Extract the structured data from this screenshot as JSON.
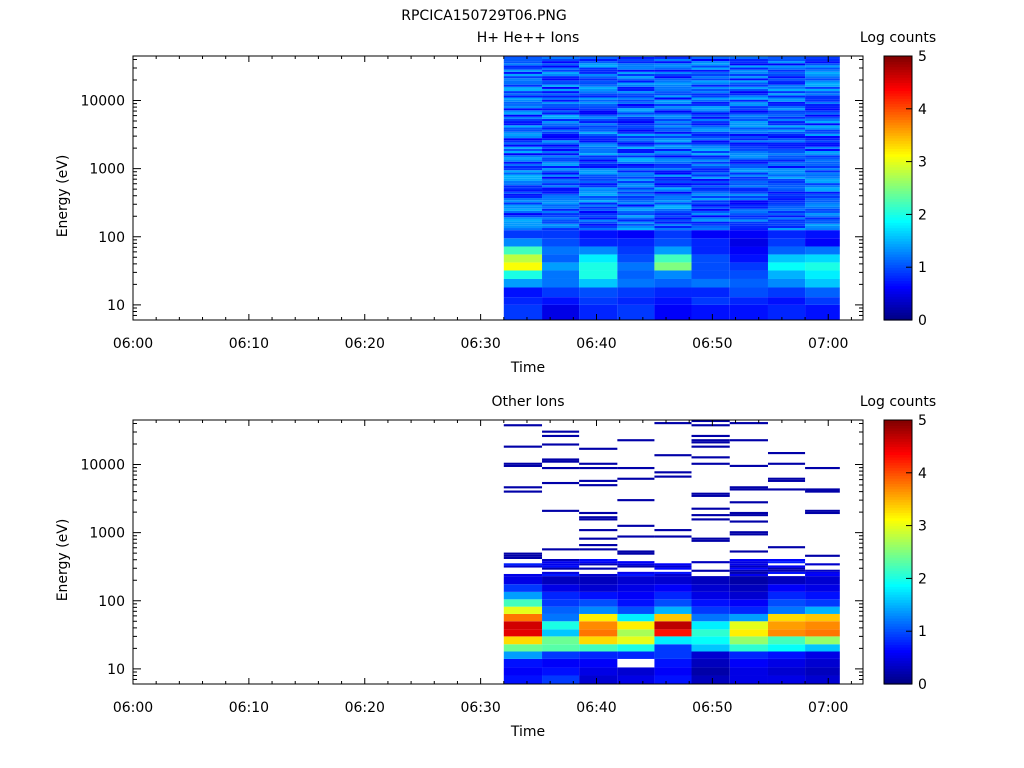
{
  "title": "RPCICA150729T06.PNG",
  "time_ticks": [
    "06:00",
    "06:10",
    "06:20",
    "06:30",
    "06:40",
    "06:50",
    "07:00"
  ],
  "time_tick_minutes": [
    0,
    10,
    20,
    30,
    40,
    50,
    60
  ],
  "energy_ticks": [
    "10",
    "100",
    "1000",
    "10000"
  ],
  "energy_tick_values": [
    10,
    100,
    1000,
    10000
  ],
  "colorbar_ticks": [
    "0",
    "1",
    "2",
    "3",
    "4",
    "5"
  ],
  "chart_data": [
    {
      "type": "heatmap",
      "title": "H+ He++ Ions",
      "xlabel": "Time",
      "ylabel": "Energy (eV)",
      "colorbar_label": "Log counts",
      "xlim_minutes": [
        0,
        63
      ],
      "ylim": [
        6,
        45000
      ],
      "yscale": "log",
      "zlim": [
        0,
        5
      ],
      "colormap": "jet",
      "data_start_minute": 32,
      "time_columns": [
        "06:32",
        "06:35",
        "06:38",
        "06:42",
        "06:45",
        "06:48",
        "06:51",
        "06:55",
        "06:58"
      ],
      "column_edges_minutes": [
        32,
        35.3,
        38.5,
        41.8,
        45,
        48.2,
        51.5,
        54.8,
        58,
        61
      ],
      "low_energy_bins": [
        {
          "energy_range": [
            6,
            10
          ],
          "values": [
            0.9,
            0.5,
            0.8,
            0.9,
            0.6,
            0.7,
            0.7,
            0.8,
            0.7
          ]
        },
        {
          "energy_range": [
            10,
            13
          ],
          "values": [
            0.8,
            0.7,
            0.9,
            0.8,
            0.7,
            0.9,
            0.8,
            0.7,
            0.9
          ]
        },
        {
          "energy_range": [
            13,
            18
          ],
          "values": [
            0.7,
            0.9,
            1.0,
            0.9,
            0.8,
            0.8,
            1.0,
            0.9,
            1.1
          ]
        },
        {
          "energy_range": [
            18,
            24
          ],
          "values": [
            1.4,
            1.2,
            1.6,
            1.2,
            1.1,
            1.2,
            1.1,
            1.3,
            1.6
          ]
        },
        {
          "energy_range": [
            24,
            32
          ],
          "values": [
            2.0,
            1.2,
            2.0,
            1.1,
            1.3,
            1.0,
            1.0,
            1.5,
            1.8
          ]
        },
        {
          "energy_range": [
            32,
            42
          ],
          "values": [
            3.1,
            1.4,
            2.0,
            1.2,
            2.5,
            1.0,
            0.9,
            1.9,
            2.0
          ]
        },
        {
          "energy_range": [
            42,
            55
          ],
          "values": [
            2.8,
            1.1,
            1.8,
            1.0,
            2.2,
            1.0,
            0.7,
            1.6,
            1.7
          ]
        },
        {
          "energy_range": [
            55,
            72
          ],
          "values": [
            2.2,
            1.2,
            1.3,
            0.9,
            1.4,
            0.8,
            0.6,
            1.1,
            1.2
          ]
        },
        {
          "energy_range": [
            72,
            95
          ],
          "values": [
            1.3,
            1.0,
            0.8,
            0.8,
            1.0,
            0.8,
            0.5,
            0.9,
            0.6
          ]
        },
        {
          "energy_range": [
            95,
            125
          ],
          "values": [
            0.9,
            0.9,
            0.7,
            0.6,
            0.9,
            0.6,
            0.6,
            0.8,
            0.7
          ]
        }
      ],
      "high_energy_background_range": [
        0.6,
        1.5
      ]
    },
    {
      "type": "heatmap",
      "title": "Other Ions",
      "xlabel": "Time",
      "ylabel": "Energy (eV)",
      "colorbar_label": "Log counts",
      "xlim_minutes": [
        0,
        63
      ],
      "ylim": [
        6,
        45000
      ],
      "yscale": "log",
      "zlim": [
        0,
        5
      ],
      "colormap": "jet",
      "data_start_minute": 32,
      "time_columns": [
        "06:32",
        "06:35",
        "06:38",
        "06:42",
        "06:45",
        "06:48",
        "06:51",
        "06:55",
        "06:58"
      ],
      "column_edges_minutes": [
        32,
        35.3,
        38.5,
        41.8,
        45,
        48.2,
        51.5,
        54.8,
        58,
        61
      ],
      "low_energy_bins": [
        {
          "energy_range": [
            6,
            8
          ],
          "values": [
            0.7,
            0.9,
            0.4,
            0.5,
            0.7,
            0.3,
            0.5,
            0.5,
            0.4
          ]
        },
        {
          "energy_range": [
            8,
            10.5
          ],
          "values": [
            0.6,
            0.7,
            0.5,
            0.4,
            0.6,
            0.2,
            0.5,
            0.4,
            0.3
          ]
        },
        {
          "energy_range": [
            10.5,
            14
          ],
          "values": [
            0.7,
            0.6,
            0.6,
            null,
            0.7,
            0.3,
            0.6,
            0.5,
            0.4
          ]
        },
        {
          "energy_range": [
            14,
            18
          ],
          "values": [
            1.4,
            0.9,
            0.8,
            0.8,
            0.9,
            0.4,
            0.8,
            0.7,
            0.5
          ]
        },
        {
          "energy_range": [
            18,
            23
          ],
          "values": [
            2.4,
            2.3,
            2.2,
            2.0,
            0.9,
            1.6,
            2.1,
            1.9,
            1.6
          ]
        },
        {
          "energy_range": [
            23,
            30
          ],
          "values": [
            3.3,
            2.4,
            3.3,
            3.0,
            1.8,
            1.9,
            2.6,
            2.2,
            2.6
          ]
        },
        {
          "energy_range": [
            30,
            38
          ],
          "values": [
            4.5,
            1.6,
            3.8,
            2.7,
            4.3,
            2.1,
            3.2,
            3.7,
            3.8
          ]
        },
        {
          "energy_range": [
            38,
            50
          ],
          "values": [
            4.6,
            2.0,
            3.7,
            3.2,
            4.7,
            1.8,
            3.0,
            3.6,
            3.7
          ]
        },
        {
          "energy_range": [
            50,
            64
          ],
          "values": [
            3.8,
            1.2,
            3.2,
            1.8,
            3.4,
            1.2,
            1.4,
            3.3,
            3.4
          ]
        },
        {
          "energy_range": [
            64,
            82
          ],
          "values": [
            3.0,
            1.1,
            1.3,
            1.0,
            1.5,
            0.9,
            0.8,
            1.2,
            1.5
          ]
        },
        {
          "energy_range": [
            82,
            105
          ],
          "values": [
            2.2,
            0.9,
            1.0,
            0.7,
            1.0,
            0.7,
            0.6,
            1.0,
            0.9
          ]
        },
        {
          "energy_range": [
            105,
            135
          ],
          "values": [
            1.4,
            0.8,
            0.7,
            0.6,
            0.8,
            0.5,
            0.4,
            0.8,
            0.7
          ]
        },
        {
          "energy_range": [
            135,
            175
          ],
          "values": [
            0.9,
            0.5,
            0.4,
            0.5,
            0.6,
            0.4,
            0.3,
            0.6,
            0.5
          ]
        },
        {
          "energy_range": [
            175,
            230
          ],
          "values": [
            0.5,
            0.3,
            0.3,
            0.4,
            0.4,
            0.3,
            0.2,
            0.3,
            0.4
          ]
        }
      ],
      "sparse_high_energy_counts_value": 0.2
    }
  ]
}
